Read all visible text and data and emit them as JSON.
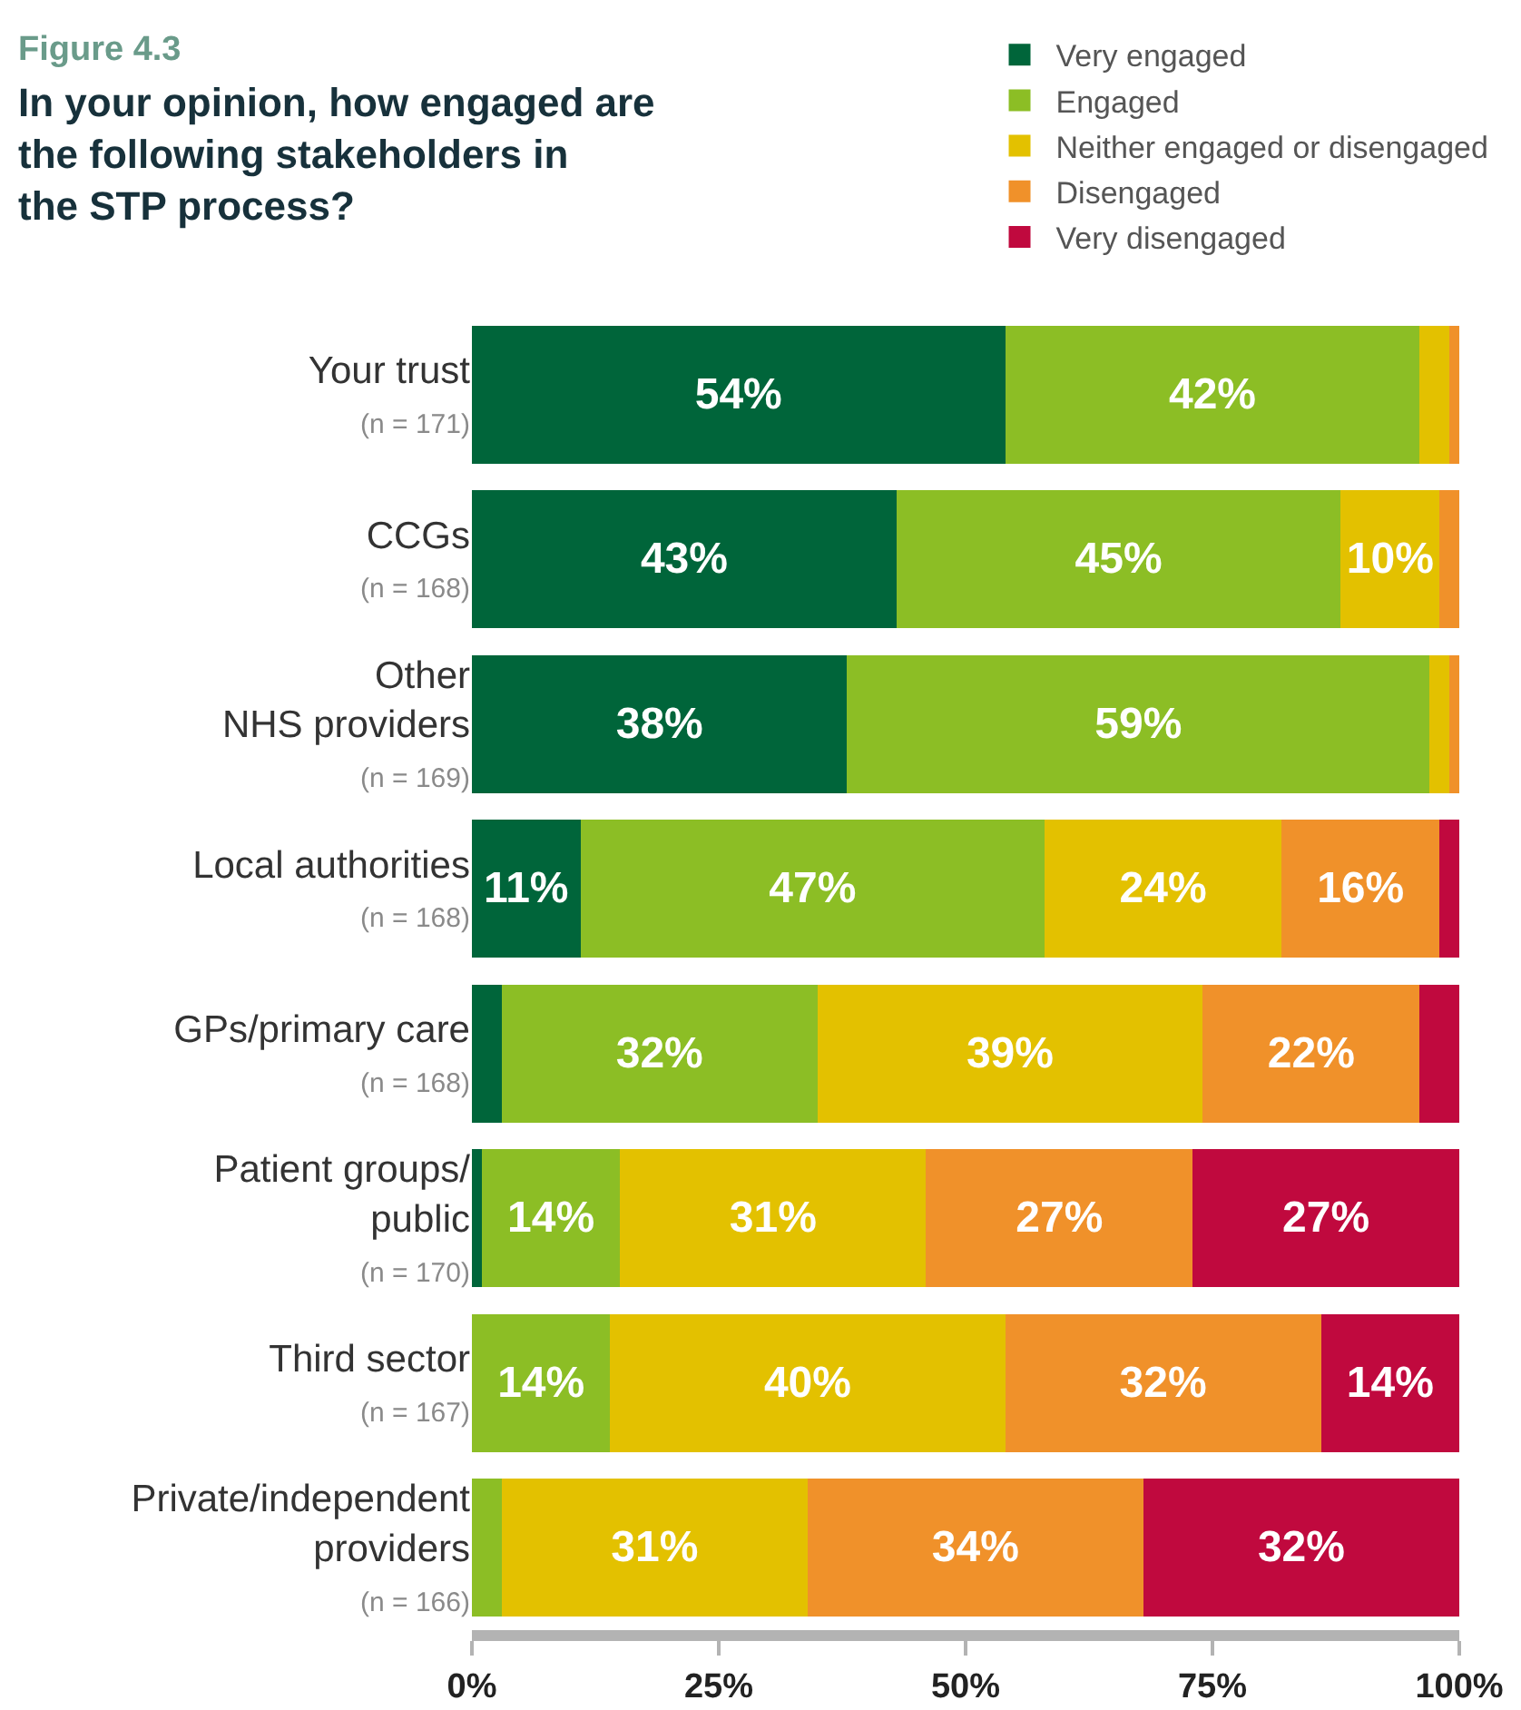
{
  "chart_data": {
    "type": "bar",
    "orientation": "horizontal",
    "stacked": true,
    "title": "Figure 4.3",
    "subtitle": "In your opinion, how engaged are the following stakeholders in the STP process?",
    "categories": [
      "Your trust\n(n = 171)",
      "CCGs\n(n = 168)",
      "Other\nNHS providers\n(n = 169)",
      "Local authorities\n(n = 168)",
      "GPs/primary care\n(n = 168)",
      "Patient groups/\npublic\n(n = 170)",
      "Third sector\n(n = 167)",
      "Private/independent\nproviders\n(n = 166)"
    ],
    "series": [
      {
        "name": "Very engaged",
        "color": "#00653a",
        "values": [
          54,
          43,
          38,
          11,
          3,
          1,
          0,
          0
        ],
        "value_labels": [
          "54%",
          "43%",
          "38%",
          "11%",
          null,
          null,
          null,
          null
        ]
      },
      {
        "name": "Engaged",
        "color": "#8cbe25",
        "values": [
          42,
          45,
          59,
          47,
          32,
          14,
          14,
          3
        ],
        "value_labels": [
          "42%",
          "45%",
          "59%",
          "47%",
          "32%",
          "14%",
          "14%",
          null
        ]
      },
      {
        "name": "Neither engaged or disengaged",
        "color": "#e3c100",
        "values": [
          3,
          10,
          2,
          24,
          39,
          31,
          40,
          31
        ],
        "value_labels": [
          null,
          "10%",
          null,
          "24%",
          "39%",
          "31%",
          "40%",
          "31%"
        ]
      },
      {
        "name": "Disengaged",
        "color": "#f0912a",
        "values": [
          1,
          2,
          1,
          16,
          22,
          27,
          32,
          34
        ],
        "value_labels": [
          null,
          null,
          null,
          "16%",
          "22%",
          "27%",
          "32%",
          "34%"
        ]
      },
      {
        "name": "Very disengaged",
        "color": "#c0093e",
        "values": [
          0,
          0,
          0,
          2,
          4,
          27,
          14,
          32
        ],
        "value_labels": [
          null,
          null,
          null,
          null,
          null,
          "27%",
          "14%",
          "32%"
        ]
      }
    ],
    "xlim": [
      0,
      100
    ],
    "xticks": [
      {
        "value": 0,
        "label": "0%"
      },
      {
        "value": 25,
        "label": "25%"
      },
      {
        "value": 50,
        "label": "50%"
      },
      {
        "value": 75,
        "label": "75%"
      },
      {
        "value": 100,
        "label": "100%"
      }
    ],
    "grid": false,
    "legend": "top right"
  }
}
